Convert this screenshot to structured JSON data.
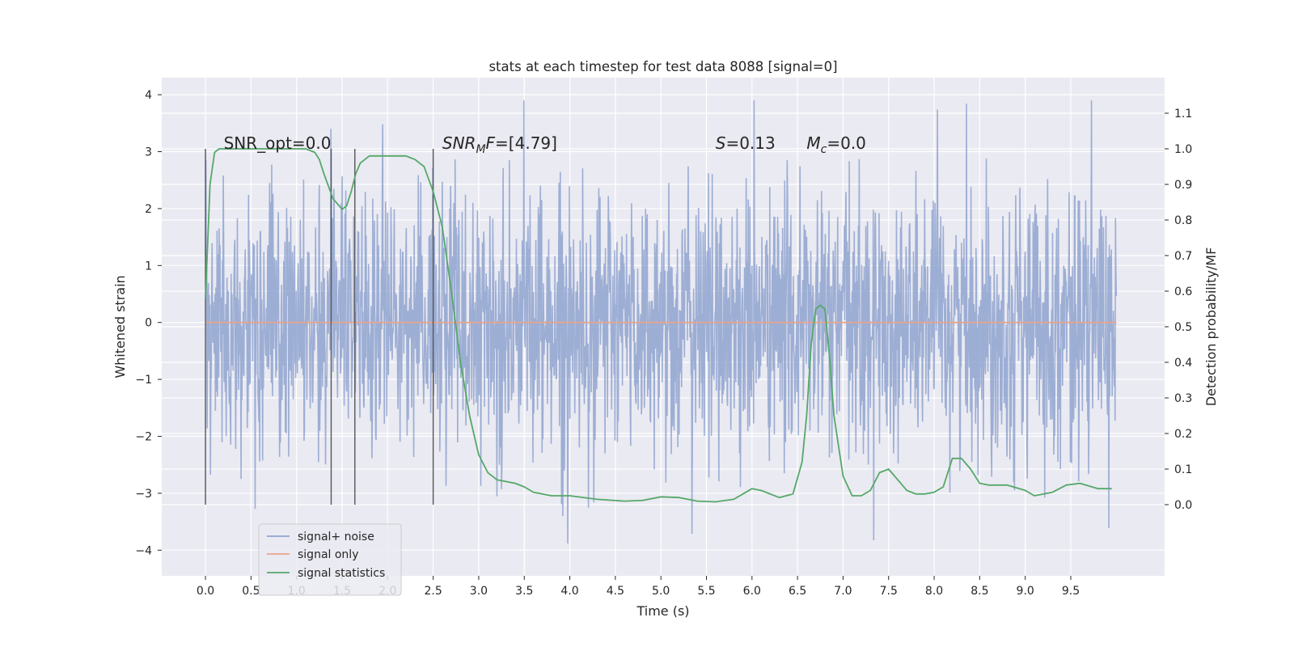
{
  "chart_data": {
    "type": "line",
    "title": "stats at each timestep for test data 8088 [signal=0]",
    "xlabel": "Time (s)",
    "ylabel": "Whitened strain",
    "ylabel_right": "Detection probability/MF",
    "xlim": [
      -0.48,
      10.53
    ],
    "ylim_left": [
      -4.45,
      4.3
    ],
    "ylim_right": [
      -0.2,
      1.2
    ],
    "x_ticks": [
      "0.0",
      "0.5",
      "1.0",
      "1.5",
      "2.0",
      "2.5",
      "3.0",
      "3.5",
      "4.0",
      "4.5",
      "5.0",
      "5.5",
      "6.0",
      "6.5",
      "7.0",
      "7.5",
      "8.0",
      "8.5",
      "9.0",
      "9.5"
    ],
    "y_ticks_left": [
      "4",
      "3",
      "2",
      "1",
      "0",
      "−1",
      "−2",
      "−3",
      "−4"
    ],
    "y_ticks_right": [
      "1.1",
      "1.0",
      "0.9",
      "0.8",
      "0.7",
      "0.6",
      "0.5",
      "0.4",
      "0.3",
      "0.2",
      "0.1",
      "0.0"
    ],
    "grid": true,
    "legend_position": "lower-left",
    "series": [
      {
        "name": "signal+ noise",
        "color": "#8fa3cf",
        "axis": "left",
        "note_values": "dense whitened noise from 0.0 to 10.0 s, spanning roughly -3.9 to 3.9"
      },
      {
        "name": "signal only",
        "color": "#e8a48a",
        "axis": "left",
        "x": [
          0.0,
          10.0
        ],
        "y": [
          0.0,
          0.0
        ]
      },
      {
        "name": "signal statistics",
        "color": "#55a868",
        "axis": "right",
        "x": [
          0.0,
          0.05,
          0.1,
          0.15,
          0.25,
          0.4,
          0.6,
          0.8,
          1.0,
          1.1,
          1.2,
          1.25,
          1.3,
          1.4,
          1.5,
          1.55,
          1.6,
          1.65,
          1.7,
          1.8,
          1.9,
          2.0,
          2.2,
          2.3,
          2.4,
          2.5,
          2.6,
          2.7,
          2.8,
          2.9,
          3.0,
          3.1,
          3.2,
          3.3,
          3.4,
          3.5,
          3.6,
          3.8,
          4.0,
          4.3,
          4.6,
          4.8,
          5.0,
          5.2,
          5.4,
          5.6,
          5.8,
          5.9,
          6.0,
          6.1,
          6.3,
          6.45,
          6.55,
          6.6,
          6.65,
          6.7,
          6.75,
          6.8,
          6.85,
          6.9,
          7.0,
          7.1,
          7.2,
          7.3,
          7.4,
          7.5,
          7.6,
          7.7,
          7.8,
          7.9,
          8.0,
          8.1,
          8.2,
          8.3,
          8.4,
          8.5,
          8.6,
          8.8,
          9.0,
          9.1,
          9.3,
          9.45,
          9.6,
          9.8,
          9.95
        ],
        "y": [
          0.58,
          0.9,
          0.99,
          1.0,
          1.0,
          1.0,
          1.0,
          1.0,
          1.0,
          1.0,
          0.99,
          0.97,
          0.93,
          0.86,
          0.83,
          0.84,
          0.88,
          0.93,
          0.96,
          0.98,
          0.98,
          0.98,
          0.98,
          0.97,
          0.95,
          0.88,
          0.78,
          0.6,
          0.4,
          0.25,
          0.14,
          0.09,
          0.07,
          0.065,
          0.06,
          0.05,
          0.035,
          0.025,
          0.025,
          0.015,
          0.01,
          0.012,
          0.022,
          0.02,
          0.01,
          0.008,
          0.015,
          0.03,
          0.045,
          0.04,
          0.02,
          0.03,
          0.12,
          0.25,
          0.45,
          0.55,
          0.56,
          0.55,
          0.42,
          0.25,
          0.08,
          0.025,
          0.025,
          0.04,
          0.09,
          0.1,
          0.07,
          0.04,
          0.03,
          0.03,
          0.035,
          0.05,
          0.13,
          0.13,
          0.1,
          0.06,
          0.055,
          0.055,
          0.04,
          0.025,
          0.035,
          0.055,
          0.06,
          0.045,
          0.045
        ]
      }
    ],
    "vertical_markers": [
      0.0,
      1.38,
      1.64,
      2.5
    ],
    "annotations": [
      {
        "x": 0.2,
        "y": 3.05,
        "text": "SNR_opt=0.0",
        "italic": false
      },
      {
        "x": 2.6,
        "y": 3.05,
        "text": "SNR",
        "sub": "M",
        "tail": "F=[4.79]",
        "italic": true
      },
      {
        "x": 5.6,
        "y": 3.05,
        "text": "S",
        "tail": "=0.13",
        "italic": true
      },
      {
        "x": 6.6,
        "y": 3.05,
        "text": "M",
        "sub": "c",
        "tail": "=0.0",
        "italic": true
      }
    ]
  }
}
